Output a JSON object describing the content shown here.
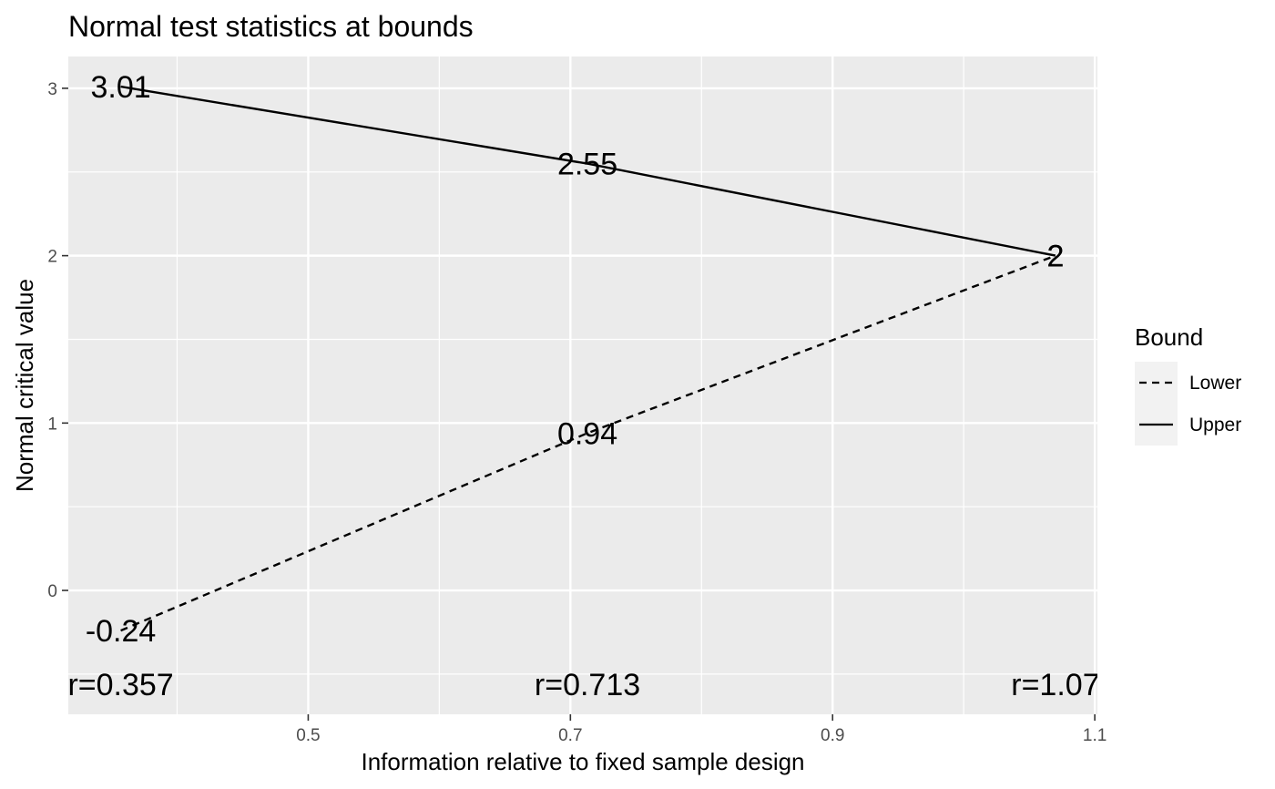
{
  "chart_data": {
    "type": "line",
    "title": "Normal test statistics at bounds",
    "xlabel": "Information relative to fixed sample design",
    "ylabel": "Normal critical value",
    "xlim": [
      0.317,
      1.102
    ],
    "ylim": [
      -0.74,
      3.19
    ],
    "xticks": [
      0.5,
      0.7,
      0.9,
      1.1
    ],
    "xtick_labels": [
      "0.5",
      "0.7",
      "0.9",
      "1.1"
    ],
    "yticks": [
      0,
      1,
      2,
      3
    ],
    "ytick_labels": [
      "0",
      "1",
      "2",
      "3"
    ],
    "x_minor": [
      0.4,
      0.6,
      0.8,
      1.0
    ],
    "y_minor": [
      -0.5,
      0.5,
      1.5,
      2.5
    ],
    "grid": true,
    "x": [
      0.357,
      0.713,
      1.07
    ],
    "series": [
      {
        "name": "Lower",
        "linetype": "dashed",
        "values": [
          -0.24,
          0.94,
          2.0
        ],
        "labels": [
          "-0.24",
          "0.94",
          "2"
        ]
      },
      {
        "name": "Upper",
        "linetype": "solid",
        "values": [
          3.01,
          2.55,
          2.0
        ],
        "labels": [
          "3.01",
          "2.55",
          "2"
        ]
      }
    ],
    "annotations": [
      {
        "x": 0.357,
        "y": -0.56,
        "text": "r=0.357"
      },
      {
        "x": 0.713,
        "y": -0.56,
        "text": "r=0.713"
      },
      {
        "x": 1.07,
        "y": -0.56,
        "text": "r=1.07"
      }
    ],
    "legend": {
      "title": "Bound",
      "position": "right",
      "entries": [
        {
          "label": "Lower",
          "linetype": "dashed"
        },
        {
          "label": "Upper",
          "linetype": "solid"
        }
      ]
    },
    "colors": {
      "panel": "#ebebeb",
      "grid": "#ffffff",
      "line": "#000000",
      "legend_key": "#f2f2f2"
    }
  }
}
